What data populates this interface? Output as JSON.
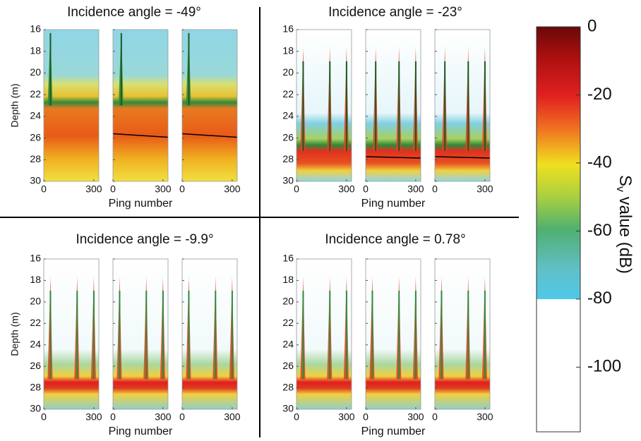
{
  "chart_data": [
    {
      "type": "heatmap",
      "title": "Incidence angle = -49°",
      "xlabel": "Ping number",
      "ylabel": "Depth (m)",
      "xlim": [
        0,
        330
      ],
      "xticks": [
        0,
        300
      ],
      "ylim": [
        30,
        16
      ],
      "yticks": [
        16,
        18,
        20,
        22,
        24,
        26,
        28,
        30
      ]
    },
    {
      "type": "heatmap",
      "title": "Incidence angle = -23°",
      "xlabel": "Ping number",
      "xlim": [
        0,
        330
      ],
      "xticks": [
        0,
        300
      ],
      "ylim": [
        30,
        16
      ],
      "yticks": [
        16,
        18,
        20,
        22,
        24,
        26,
        28,
        30
      ]
    },
    {
      "type": "heatmap",
      "title": "Incidence angle = -9.9°",
      "xlabel": "Ping number",
      "ylabel": "Depth (m)",
      "xlim": [
        0,
        330
      ],
      "xticks": [
        0,
        300
      ],
      "ylim": [
        30,
        16
      ],
      "yticks": [
        16,
        18,
        20,
        22,
        24,
        26,
        28,
        30
      ]
    },
    {
      "type": "heatmap",
      "title": "Incidence angle = 0.78°",
      "xlabel": "Ping number",
      "xlim": [
        0,
        330
      ],
      "xticks": [
        0,
        300
      ],
      "ylim": [
        30,
        16
      ],
      "yticks": [
        16,
        18,
        20,
        22,
        24,
        26,
        28,
        30
      ]
    },
    {
      "type": "colorbar",
      "label": [
        "S",
        "v",
        " value (dB)"
      ],
      "ylim": [
        -119,
        0
      ],
      "yticks": [
        0,
        -20,
        -40,
        -60,
        -80,
        -100
      ]
    }
  ]
}
